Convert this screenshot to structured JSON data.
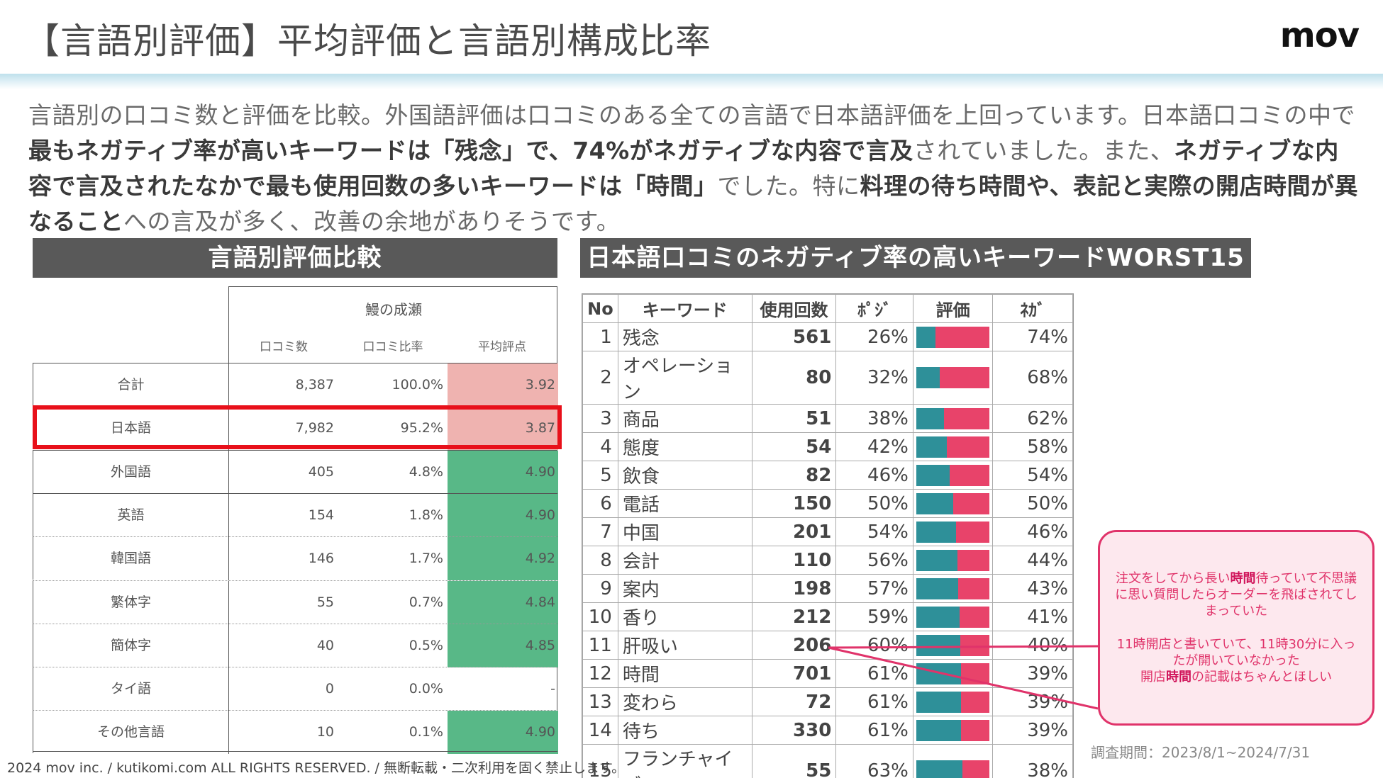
{
  "header": {
    "title": "【言語別評価】平均評価と言語別構成比率",
    "logo": "mov"
  },
  "intro": {
    "p1": "言語別の口コミ数と評価を比較。外国語評価は口コミのある全ての言語で日本語評価を上回っています。日本語口コミの中で",
    "b1": "最もネガティブ率が高いキーワードは「残念」で、74%がネガティブな内容で言及",
    "p2": "されていました。また、",
    "b2": "ネガティブな内容で言及されたなかで最も使用回数の多いキーワードは「時間」",
    "p3": "でした。特に",
    "b3": "料理の待ち時間や、表記と実際の開店時間が異なること",
    "p4": "への言及が多く、改善の余地がありそうです。"
  },
  "left": {
    "section_title": "言語別評価比較",
    "brand": "鰻の成瀬",
    "col_headers": [
      "口コミ数",
      "口コミ比率",
      "平均評点"
    ],
    "rows": [
      {
        "label": "合計",
        "count": "8,387",
        "ratio": "100.0%",
        "score": "3.92",
        "tone": "red"
      },
      {
        "label": "日本語",
        "count": "7,982",
        "ratio": "95.2%",
        "score": "3.87",
        "tone": "red"
      },
      {
        "label": "外国語",
        "count": "405",
        "ratio": "4.8%",
        "score": "4.90",
        "tone": "green"
      },
      {
        "label": "英語",
        "count": "154",
        "ratio": "1.8%",
        "score": "4.90",
        "tone": "green"
      },
      {
        "label": "韓国語",
        "count": "146",
        "ratio": "1.7%",
        "score": "4.92",
        "tone": "green"
      },
      {
        "label": "繁体字",
        "count": "55",
        "ratio": "0.7%",
        "score": "4.84",
        "tone": "green"
      },
      {
        "label": "簡体字",
        "count": "40",
        "ratio": "0.5%",
        "score": "4.85",
        "tone": "green"
      },
      {
        "label": "タイ語",
        "count": "0",
        "ratio": "0.0%",
        "score": "-",
        "tone": "none"
      },
      {
        "label": "その他言語",
        "count": "10",
        "ratio": "0.1%",
        "score": "4.90",
        "tone": "green"
      }
    ]
  },
  "right": {
    "section_title": "日本語口コミのネガティブ率の高いキーワードWORST15",
    "headers": [
      "No",
      "キーワード",
      "使用回数",
      "ﾎﾟｼﾞ",
      "評価",
      "ﾈｶﾞ"
    ],
    "rows": [
      {
        "no": "1",
        "keyword": "残念",
        "count": "561",
        "pos": "26%",
        "neg": "74%"
      },
      {
        "no": "2",
        "keyword": "オペレーション",
        "count": "80",
        "pos": "32%",
        "neg": "68%"
      },
      {
        "no": "3",
        "keyword": "商品",
        "count": "51",
        "pos": "38%",
        "neg": "62%"
      },
      {
        "no": "4",
        "keyword": "態度",
        "count": "54",
        "pos": "42%",
        "neg": "58%"
      },
      {
        "no": "5",
        "keyword": "飲食",
        "count": "82",
        "pos": "46%",
        "neg": "54%"
      },
      {
        "no": "6",
        "keyword": "電話",
        "count": "150",
        "pos": "50%",
        "neg": "50%"
      },
      {
        "no": "7",
        "keyword": "中国",
        "count": "201",
        "pos": "54%",
        "neg": "46%"
      },
      {
        "no": "8",
        "keyword": "会計",
        "count": "110",
        "pos": "56%",
        "neg": "44%"
      },
      {
        "no": "9",
        "keyword": "案内",
        "count": "198",
        "pos": "57%",
        "neg": "43%"
      },
      {
        "no": "10",
        "keyword": "香り",
        "count": "212",
        "pos": "59%",
        "neg": "41%"
      },
      {
        "no": "11",
        "keyword": "肝吸い",
        "count": "206",
        "pos": "60%",
        "neg": "40%"
      },
      {
        "no": "12",
        "keyword": "時間",
        "count": "701",
        "pos": "61%",
        "neg": "39%"
      },
      {
        "no": "13",
        "keyword": "変わら",
        "count": "72",
        "pos": "61%",
        "neg": "39%"
      },
      {
        "no": "14",
        "keyword": "待ち",
        "count": "330",
        "pos": "61%",
        "neg": "39%"
      },
      {
        "no": "15",
        "keyword": "フランチャイズ",
        "count": "55",
        "pos": "63%",
        "neg": "38%"
      }
    ]
  },
  "callout": {
    "q1_a": "注文をしてから長い",
    "q1_b": "時間",
    "q1_c": "待っていて不思議に思い質問したらオーダーを飛ばされてしまっていた",
    "q2_a": "11時開店と書いていて、11時30分に入ったが開いていなかった",
    "q2_b": "開店",
    "q2_c": "時間",
    "q2_d": "の記載はちゃんとほしい"
  },
  "period": "調査期間：2023/8/1~2024/7/31",
  "footer": "2024 mov inc. / kutikomi.com ALL RIGHTS RESERVED. / 無断転載・二次利用を固く禁止します。",
  "colors": {
    "pos_bar": "#2e9099",
    "neg_bar": "#e8436a",
    "score_red": "#efb3b0",
    "score_green": "#58b887",
    "highlight": "#e8101a"
  }
}
